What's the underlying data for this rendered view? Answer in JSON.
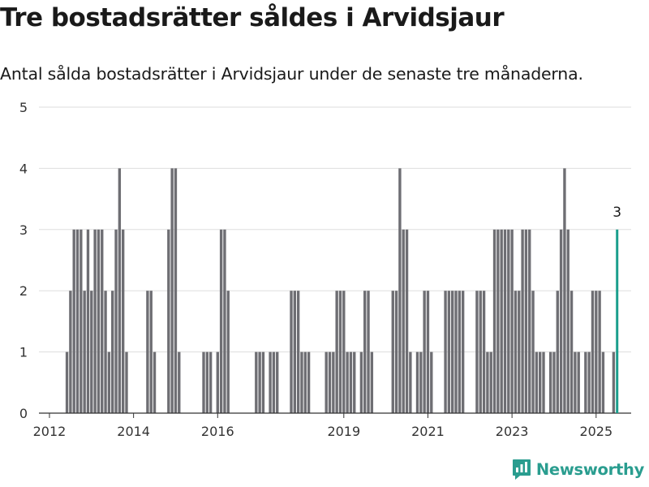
{
  "header": {
    "title": "Tre bostadsrätter såldes i Arvidsjaur",
    "subtitle": "Antal sålda bostadsrätter i Arvidsjaur under de senaste tre månaderna."
  },
  "brand": {
    "name": "Newsworthy"
  },
  "colors": {
    "bar": "#6e6e73",
    "highlight": "#1a9e8c",
    "grid": "#dddddd",
    "text": "#333333",
    "brand": "#2a9d8f"
  },
  "chart_data": {
    "type": "bar",
    "title": "Tre bostadsrätter såldes i Arvidsjaur",
    "subtitle": "Antal sålda bostadsrätter i Arvidsjaur under de senaste tre månaderna.",
    "xlabel": "",
    "ylabel": "",
    "ylim": [
      0,
      5
    ],
    "yticks": [
      0,
      1,
      2,
      3,
      4,
      5
    ],
    "xticks": [
      "2012",
      "2014",
      "2016",
      "2019",
      "2021",
      "2023",
      "2025"
    ],
    "grid": true,
    "legend": "none",
    "series": [
      {
        "name": "",
        "values": [
          {
            "x": "2012-06",
            "y": 1
          },
          {
            "x": "2012-07",
            "y": 2
          },
          {
            "x": "2012-08",
            "y": 3
          },
          {
            "x": "2012-09",
            "y": 3
          },
          {
            "x": "2012-10",
            "y": 3
          },
          {
            "x": "2012-11",
            "y": 2
          },
          {
            "x": "2012-12",
            "y": 3
          },
          {
            "x": "2013-01",
            "y": 2
          },
          {
            "x": "2013-02",
            "y": 3
          },
          {
            "x": "2013-03",
            "y": 3
          },
          {
            "x": "2013-04",
            "y": 3
          },
          {
            "x": "2013-05",
            "y": 2
          },
          {
            "x": "2013-06",
            "y": 1
          },
          {
            "x": "2013-07",
            "y": 2
          },
          {
            "x": "2013-08",
            "y": 3
          },
          {
            "x": "2013-09",
            "y": 4
          },
          {
            "x": "2013-10",
            "y": 3
          },
          {
            "x": "2013-11",
            "y": 1
          },
          {
            "x": "2014-05",
            "y": 2
          },
          {
            "x": "2014-06",
            "y": 2
          },
          {
            "x": "2014-07",
            "y": 1
          },
          {
            "x": "2014-11",
            "y": 3
          },
          {
            "x": "2014-12",
            "y": 4
          },
          {
            "x": "2015-01",
            "y": 4
          },
          {
            "x": "2015-02",
            "y": 1
          },
          {
            "x": "2015-09",
            "y": 1
          },
          {
            "x": "2015-10",
            "y": 1
          },
          {
            "x": "2015-11",
            "y": 1
          },
          {
            "x": "2016-01",
            "y": 1
          },
          {
            "x": "2016-02",
            "y": 3
          },
          {
            "x": "2016-03",
            "y": 3
          },
          {
            "x": "2016-04",
            "y": 2
          },
          {
            "x": "2016-12",
            "y": 1
          },
          {
            "x": "2017-01",
            "y": 1
          },
          {
            "x": "2017-02",
            "y": 1
          },
          {
            "x": "2017-04",
            "y": 1
          },
          {
            "x": "2017-05",
            "y": 1
          },
          {
            "x": "2017-06",
            "y": 1
          },
          {
            "x": "2017-10",
            "y": 2
          },
          {
            "x": "2017-11",
            "y": 2
          },
          {
            "x": "2017-12",
            "y": 2
          },
          {
            "x": "2018-01",
            "y": 1
          },
          {
            "x": "2018-02",
            "y": 1
          },
          {
            "x": "2018-03",
            "y": 1
          },
          {
            "x": "2018-08",
            "y": 1
          },
          {
            "x": "2018-09",
            "y": 1
          },
          {
            "x": "2018-10",
            "y": 1
          },
          {
            "x": "2018-11",
            "y": 2
          },
          {
            "x": "2018-12",
            "y": 2
          },
          {
            "x": "2019-01",
            "y": 2
          },
          {
            "x": "2019-02",
            "y": 1
          },
          {
            "x": "2019-03",
            "y": 1
          },
          {
            "x": "2019-04",
            "y": 1
          },
          {
            "x": "2019-06",
            "y": 1
          },
          {
            "x": "2019-07",
            "y": 2
          },
          {
            "x": "2019-08",
            "y": 2
          },
          {
            "x": "2019-09",
            "y": 1
          },
          {
            "x": "2020-03",
            "y": 2
          },
          {
            "x": "2020-04",
            "y": 2
          },
          {
            "x": "2020-05",
            "y": 4
          },
          {
            "x": "2020-06",
            "y": 3
          },
          {
            "x": "2020-07",
            "y": 3
          },
          {
            "x": "2020-08",
            "y": 1
          },
          {
            "x": "2020-10",
            "y": 1
          },
          {
            "x": "2020-11",
            "y": 1
          },
          {
            "x": "2020-12",
            "y": 2
          },
          {
            "x": "2021-01",
            "y": 2
          },
          {
            "x": "2021-02",
            "y": 1
          },
          {
            "x": "2021-06",
            "y": 2
          },
          {
            "x": "2021-07",
            "y": 2
          },
          {
            "x": "2021-08",
            "y": 2
          },
          {
            "x": "2021-09",
            "y": 2
          },
          {
            "x": "2021-10",
            "y": 2
          },
          {
            "x": "2021-11",
            "y": 2
          },
          {
            "x": "2022-03",
            "y": 2
          },
          {
            "x": "2022-04",
            "y": 2
          },
          {
            "x": "2022-05",
            "y": 2
          },
          {
            "x": "2022-06",
            "y": 1
          },
          {
            "x": "2022-07",
            "y": 1
          },
          {
            "x": "2022-08",
            "y": 3
          },
          {
            "x": "2022-09",
            "y": 3
          },
          {
            "x": "2022-10",
            "y": 3
          },
          {
            "x": "2022-11",
            "y": 3
          },
          {
            "x": "2022-12",
            "y": 3
          },
          {
            "x": "2023-01",
            "y": 3
          },
          {
            "x": "2023-02",
            "y": 2
          },
          {
            "x": "2023-03",
            "y": 2
          },
          {
            "x": "2023-04",
            "y": 3
          },
          {
            "x": "2023-05",
            "y": 3
          },
          {
            "x": "2023-06",
            "y": 3
          },
          {
            "x": "2023-07",
            "y": 2
          },
          {
            "x": "2023-08",
            "y": 1
          },
          {
            "x": "2023-09",
            "y": 1
          },
          {
            "x": "2023-10",
            "y": 1
          },
          {
            "x": "2023-12",
            "y": 1
          },
          {
            "x": "2024-01",
            "y": 1
          },
          {
            "x": "2024-02",
            "y": 2
          },
          {
            "x": "2024-03",
            "y": 3
          },
          {
            "x": "2024-04",
            "y": 4
          },
          {
            "x": "2024-05",
            "y": 3
          },
          {
            "x": "2024-06",
            "y": 2
          },
          {
            "x": "2024-07",
            "y": 1
          },
          {
            "x": "2024-08",
            "y": 1
          },
          {
            "x": "2024-10",
            "y": 1
          },
          {
            "x": "2024-11",
            "y": 1
          },
          {
            "x": "2024-12",
            "y": 2
          },
          {
            "x": "2025-01",
            "y": 2
          },
          {
            "x": "2025-02",
            "y": 2
          },
          {
            "x": "2025-03",
            "y": 1
          },
          {
            "x": "2025-06",
            "y": 1
          }
        ]
      }
    ],
    "highlight": {
      "x": "2025-07",
      "y": 3,
      "label": "3"
    }
  }
}
